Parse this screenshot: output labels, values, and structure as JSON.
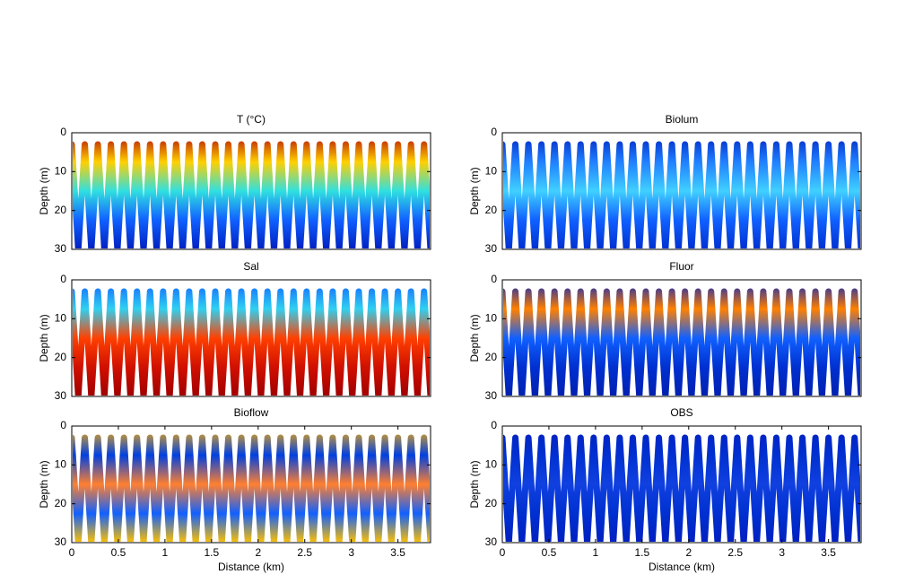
{
  "chart_data": [
    {
      "type": "line",
      "title": "T (°C)",
      "ylabel": "Depth (m)",
      "xlim": [
        0,
        3.85
      ],
      "ylim": [
        30,
        0
      ],
      "yticks": [
        0,
        10,
        20,
        30
      ],
      "colors": [
        "#b00000",
        "#ffd000",
        "#30e0e0",
        "#1060ff",
        "#0020c0"
      ],
      "x": [
        0,
        0.07,
        0.14,
        0.21,
        0.28,
        0.35,
        0.42,
        0.49,
        0.56,
        0.63,
        0.7,
        0.77,
        0.84,
        0.91,
        0.98,
        1.05,
        1.12,
        1.19,
        1.26,
        1.33,
        1.4,
        1.47,
        1.54,
        1.61,
        1.68,
        1.75,
        1.82,
        1.89,
        1.96,
        2.03,
        2.1,
        2.17,
        2.24,
        2.31,
        2.38,
        2.45,
        2.52,
        2.59,
        2.66,
        2.73,
        2.8,
        2.87,
        2.94,
        3.01,
        3.08,
        3.15,
        3.22,
        3.29,
        3.36,
        3.43,
        3.5,
        3.57,
        3.64,
        3.71,
        3.78,
        3.85
      ],
      "values": [
        3,
        30,
        3,
        30,
        3,
        30,
        3,
        30,
        3,
        30,
        3,
        30,
        3,
        30,
        3,
        30,
        3,
        30,
        3,
        30,
        3,
        30,
        3,
        30,
        3,
        30,
        3,
        30,
        3,
        30,
        3,
        30,
        3,
        30,
        3,
        30,
        3,
        30,
        3,
        30,
        3,
        30,
        3,
        30,
        3,
        30,
        3,
        30,
        3,
        30,
        3,
        30,
        3,
        30,
        3,
        30
      ]
    },
    {
      "type": "line",
      "title": "Biolum",
      "ylabel": "Depth (m)",
      "xlim": [
        0,
        3.85
      ],
      "ylim": [
        30,
        0
      ],
      "yticks": [
        0,
        10,
        20,
        30
      ],
      "colors": [
        "#0020c0",
        "#2080ff",
        "#40d0ff",
        "#1060ff",
        "#0030d0"
      ],
      "x": [
        0,
        0.07,
        0.14,
        0.21,
        0.28,
        0.35,
        0.42,
        0.49,
        0.56,
        0.63,
        0.7,
        0.77,
        0.84,
        0.91,
        0.98,
        1.05,
        1.12,
        1.19,
        1.26,
        1.33,
        1.4,
        1.47,
        1.54,
        1.61,
        1.68,
        1.75,
        1.82,
        1.89,
        1.96,
        2.03,
        2.1,
        2.17,
        2.24,
        2.31,
        2.38,
        2.45,
        2.52,
        2.59,
        2.66,
        2.73,
        2.8,
        2.87,
        2.94,
        3.01,
        3.08,
        3.15,
        3.22,
        3.29,
        3.36,
        3.43,
        3.5,
        3.57,
        3.64,
        3.71,
        3.78,
        3.85
      ],
      "values": [
        3,
        30,
        3,
        30,
        3,
        30,
        3,
        30,
        3,
        30,
        3,
        30,
        3,
        30,
        3,
        30,
        3,
        30,
        3,
        30,
        3,
        30,
        3,
        30,
        3,
        30,
        3,
        30,
        3,
        30,
        3,
        30,
        3,
        30,
        3,
        30,
        3,
        30,
        3,
        30,
        3,
        30,
        3,
        30,
        3,
        30,
        3,
        30,
        3,
        30,
        3,
        30,
        3,
        30,
        3,
        30
      ]
    },
    {
      "type": "line",
      "title": "Sal",
      "ylabel": "Depth (m)",
      "xlim": [
        0,
        3.85
      ],
      "ylim": [
        30,
        0
      ],
      "yticks": [
        0,
        10,
        20,
        30
      ],
      "colors": [
        "#1060ff",
        "#30d0f0",
        "#ff4000",
        "#d01000",
        "#a00000"
      ],
      "x": [
        0,
        0.07,
        0.14,
        0.21,
        0.28,
        0.35,
        0.42,
        0.49,
        0.56,
        0.63,
        0.7,
        0.77,
        0.84,
        0.91,
        0.98,
        1.05,
        1.12,
        1.19,
        1.26,
        1.33,
        1.4,
        1.47,
        1.54,
        1.61,
        1.68,
        1.75,
        1.82,
        1.89,
        1.96,
        2.03,
        2.1,
        2.17,
        2.24,
        2.31,
        2.38,
        2.45,
        2.52,
        2.59,
        2.66,
        2.73,
        2.8,
        2.87,
        2.94,
        3.01,
        3.08,
        3.15,
        3.22,
        3.29,
        3.36,
        3.43,
        3.5,
        3.57,
        3.64,
        3.71,
        3.78,
        3.85
      ],
      "values": [
        3,
        30,
        3,
        30,
        3,
        30,
        3,
        30,
        3,
        30,
        3,
        30,
        3,
        30,
        3,
        30,
        3,
        30,
        3,
        30,
        3,
        30,
        3,
        30,
        3,
        30,
        3,
        30,
        3,
        30,
        3,
        30,
        3,
        30,
        3,
        30,
        3,
        30,
        3,
        30,
        3,
        30,
        3,
        30,
        3,
        30,
        3,
        30,
        3,
        30,
        3,
        30,
        3,
        30,
        3,
        30
      ]
    },
    {
      "type": "line",
      "title": "Fluor",
      "ylabel": "Depth (m)",
      "xlim": [
        0,
        3.85
      ],
      "ylim": [
        30,
        0
      ],
      "yticks": [
        0,
        10,
        20,
        30
      ],
      "colors": [
        "#0020c0",
        "#ff8000",
        "#1060ff",
        "#0030d0",
        "#0020b0"
      ],
      "x": [
        0,
        0.07,
        0.14,
        0.21,
        0.28,
        0.35,
        0.42,
        0.49,
        0.56,
        0.63,
        0.7,
        0.77,
        0.84,
        0.91,
        0.98,
        1.05,
        1.12,
        1.19,
        1.26,
        1.33,
        1.4,
        1.47,
        1.54,
        1.61,
        1.68,
        1.75,
        1.82,
        1.89,
        1.96,
        2.03,
        2.1,
        2.17,
        2.24,
        2.31,
        2.38,
        2.45,
        2.52,
        2.59,
        2.66,
        2.73,
        2.8,
        2.87,
        2.94,
        3.01,
        3.08,
        3.15,
        3.22,
        3.29,
        3.36,
        3.43,
        3.5,
        3.57,
        3.64,
        3.71,
        3.78,
        3.85
      ],
      "values": [
        3,
        30,
        3,
        30,
        3,
        30,
        3,
        30,
        3,
        30,
        3,
        30,
        3,
        30,
        3,
        30,
        3,
        30,
        3,
        30,
        3,
        30,
        3,
        30,
        3,
        30,
        3,
        30,
        3,
        30,
        3,
        30,
        3,
        30,
        3,
        30,
        3,
        30,
        3,
        30,
        3,
        30,
        3,
        30,
        3,
        30,
        3,
        30,
        3,
        30,
        3,
        30,
        3,
        30,
        3,
        30
      ]
    },
    {
      "type": "line",
      "title": "Bioflow",
      "ylabel": "Depth (m)",
      "xlabel": "Distance (km)",
      "xlim": [
        0,
        3.85
      ],
      "ylim": [
        30,
        0
      ],
      "xticks": [
        0,
        0.5,
        1,
        1.5,
        2,
        2.5,
        3,
        3.5
      ],
      "yticks": [
        0,
        10,
        20,
        30
      ],
      "colors": [
        "#ffb000",
        "#0040e0",
        "#ff8030",
        "#1060ff",
        "#ffc000"
      ],
      "x": [
        0,
        0.07,
        0.14,
        0.21,
        0.28,
        0.35,
        0.42,
        0.49,
        0.56,
        0.63,
        0.7,
        0.77,
        0.84,
        0.91,
        0.98,
        1.05,
        1.12,
        1.19,
        1.26,
        1.33,
        1.4,
        1.47,
        1.54,
        1.61,
        1.68,
        1.75,
        1.82,
        1.89,
        1.96,
        2.03,
        2.1,
        2.17,
        2.24,
        2.31,
        2.38,
        2.45,
        2.52,
        2.59,
        2.66,
        2.73,
        2.8,
        2.87,
        2.94,
        3.01,
        3.08,
        3.15,
        3.22,
        3.29,
        3.36,
        3.43,
        3.5,
        3.57,
        3.64,
        3.71,
        3.78,
        3.85
      ],
      "values": [
        3,
        30,
        3,
        30,
        3,
        30,
        3,
        30,
        3,
        30,
        3,
        30,
        3,
        30,
        3,
        30,
        3,
        30,
        3,
        30,
        3,
        30,
        3,
        30,
        3,
        30,
        3,
        30,
        3,
        30,
        3,
        30,
        3,
        30,
        3,
        30,
        3,
        30,
        3,
        30,
        3,
        30,
        3,
        30,
        3,
        30,
        3,
        30,
        3,
        30,
        3,
        30,
        3,
        30,
        3,
        30
      ]
    },
    {
      "type": "line",
      "title": "OBS",
      "ylabel": "Depth (m)",
      "xlabel": "Distance (km)",
      "xlim": [
        0,
        3.85
      ],
      "ylim": [
        30,
        0
      ],
      "xticks": [
        0,
        0.5,
        1,
        1.5,
        2,
        2.5,
        3,
        3.5
      ],
      "yticks": [
        0,
        10,
        20,
        30
      ],
      "colors": [
        "#0020c0",
        "#0030d0",
        "#1040e0",
        "#0030d0",
        "#0020c0"
      ],
      "x": [
        0,
        0.07,
        0.14,
        0.21,
        0.28,
        0.35,
        0.42,
        0.49,
        0.56,
        0.63,
        0.7,
        0.77,
        0.84,
        0.91,
        0.98,
        1.05,
        1.12,
        1.19,
        1.26,
        1.33,
        1.4,
        1.47,
        1.54,
        1.61,
        1.68,
        1.75,
        1.82,
        1.89,
        1.96,
        2.03,
        2.1,
        2.17,
        2.24,
        2.31,
        2.38,
        2.45,
        2.52,
        2.59,
        2.66,
        2.73,
        2.8,
        2.87,
        2.94,
        3.01,
        3.08,
        3.15,
        3.22,
        3.29,
        3.36,
        3.43,
        3.5,
        3.57,
        3.64,
        3.71,
        3.78,
        3.85
      ],
      "values": [
        3,
        30,
        3,
        30,
        3,
        30,
        3,
        30,
        3,
        30,
        3,
        30,
        3,
        30,
        3,
        30,
        3,
        30,
        3,
        30,
        3,
        30,
        3,
        30,
        3,
        30,
        3,
        30,
        3,
        30,
        3,
        30,
        3,
        30,
        3,
        30,
        3,
        30,
        3,
        30,
        3,
        30,
        3,
        30,
        3,
        30,
        3,
        30,
        3,
        30,
        3,
        30,
        3,
        30,
        3,
        30
      ]
    }
  ]
}
